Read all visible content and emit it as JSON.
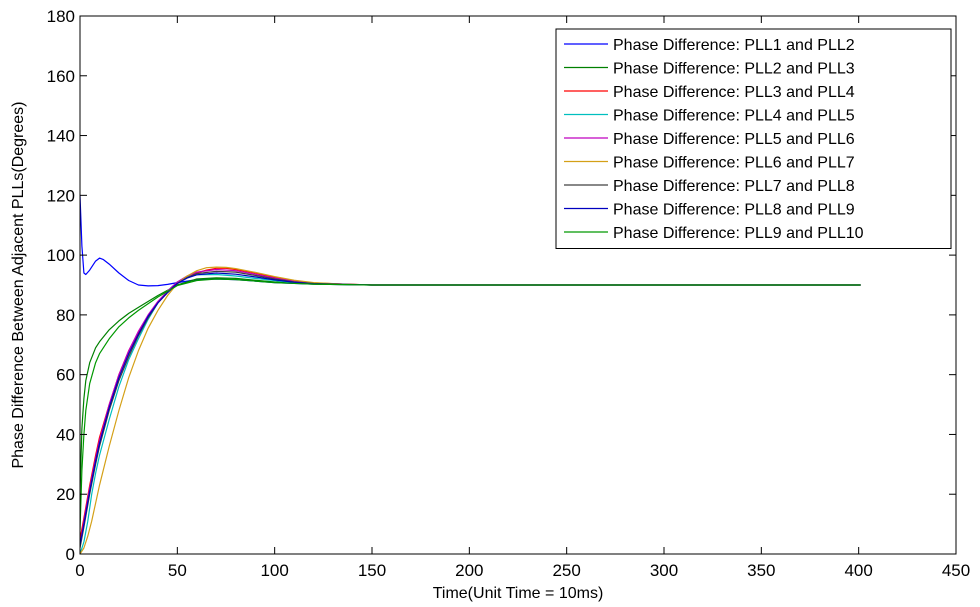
{
  "chart_data": {
    "type": "line",
    "title": "",
    "xlabel": "Time(Unit Time = 10ms)",
    "ylabel": "Phase Difference Between Adjacent PLLs(Degrees)",
    "xlim": [
      0,
      450
    ],
    "ylim": [
      0,
      180
    ],
    "xticks": [
      0,
      50,
      100,
      150,
      200,
      250,
      300,
      350,
      400,
      450
    ],
    "yticks": [
      0,
      20,
      40,
      60,
      80,
      100,
      120,
      140,
      160,
      180
    ],
    "grid": false,
    "legend_position": "top-right",
    "series": [
      {
        "name": "Phase Difference: PLL1 and PLL2",
        "color": "#0000ff",
        "x": [
          0,
          1,
          2,
          3,
          5,
          8,
          10,
          12,
          15,
          20,
          25,
          30,
          35,
          40,
          45,
          50,
          55,
          60,
          70,
          80,
          90,
          100,
          120,
          150,
          200,
          300,
          401
        ],
        "y": [
          120,
          103,
          94,
          93.5,
          95,
          98,
          99,
          98.5,
          97,
          94,
          91.5,
          90,
          89.7,
          89.8,
          90.2,
          90.8,
          91.3,
          91.8,
          92,
          91.8,
          91.3,
          90.8,
          90.3,
          90,
          90,
          90,
          90
        ]
      },
      {
        "name": "Phase Difference: PLL2 and PLL3",
        "color": "#008000",
        "x": [
          0,
          1,
          2,
          3,
          5,
          8,
          10,
          15,
          20,
          25,
          30,
          40,
          50,
          60,
          70,
          80,
          90,
          100,
          120,
          150,
          200,
          300,
          401
        ],
        "y": [
          20,
          42,
          52,
          58,
          64,
          69,
          71,
          75,
          78,
          80.5,
          82.5,
          86.5,
          90,
          92,
          92.4,
          92.2,
          91.6,
          91,
          90.3,
          90,
          90,
          90,
          90
        ]
      },
      {
        "name": "Phase Difference: PLL3 and PLL4",
        "color": "#ff0000",
        "x": [
          0,
          2,
          5,
          8,
          10,
          15,
          20,
          25,
          30,
          35,
          40,
          45,
          50,
          55,
          60,
          65,
          70,
          75,
          80,
          90,
          100,
          110,
          120,
          135,
          150,
          200,
          300,
          401
        ],
        "y": [
          5,
          12,
          23,
          33,
          39,
          50,
          60,
          68,
          74,
          79.5,
          84,
          87.5,
          90.5,
          92.5,
          94,
          95,
          95.6,
          95.6,
          95.2,
          94,
          92.5,
          91.3,
          90.7,
          90.3,
          90,
          90,
          90,
          90
        ]
      },
      {
        "name": "Phase Difference: PLL4 and PLL5",
        "color": "#00bfbf",
        "x": [
          0,
          2,
          4,
          6,
          8,
          10,
          15,
          20,
          25,
          30,
          35,
          40,
          45,
          50,
          55,
          60,
          70,
          80,
          90,
          100,
          110,
          120,
          150,
          200,
          300,
          401
        ],
        "y": [
          0,
          4,
          11,
          20,
          27,
          33,
          45,
          56,
          65,
          72,
          78.5,
          84,
          88,
          91,
          92.8,
          93.4,
          93.5,
          93,
          92.2,
          91.5,
          90.8,
          90.4,
          90,
          90,
          90,
          90
        ]
      },
      {
        "name": "Phase Difference: PLL5 and PLL6",
        "color": "#bf00bf",
        "x": [
          0,
          2,
          5,
          8,
          10,
          15,
          20,
          25,
          30,
          35,
          40,
          45,
          50,
          55,
          60,
          70,
          80,
          90,
          100,
          110,
          120,
          150,
          200,
          300,
          401
        ],
        "y": [
          3,
          11,
          22,
          32,
          38,
          50,
          60,
          68,
          74.5,
          80,
          84.5,
          88,
          91,
          93,
          94.3,
          95.2,
          94.8,
          93.6,
          92.3,
          91.2,
          90.6,
          90,
          90,
          90,
          90
        ]
      },
      {
        "name": "Phase Difference: PLL6 and PLL7",
        "color": "#d4a017",
        "x": [
          0,
          2,
          4,
          6,
          8,
          10,
          15,
          20,
          25,
          30,
          35,
          40,
          45,
          50,
          55,
          60,
          65,
          70,
          75,
          80,
          90,
          100,
          110,
          120,
          135,
          150,
          200,
          300,
          401
        ],
        "y": [
          0,
          2,
          6,
          11,
          17,
          23,
          36,
          48,
          59,
          68,
          75.5,
          81.5,
          86.5,
          90.5,
          93,
          94.8,
          95.8,
          96,
          95.9,
          95.5,
          94.2,
          92.8,
          91.6,
          90.8,
          90.3,
          90,
          90,
          90,
          90
        ]
      },
      {
        "name": "Phase Difference: PLL7 and PLL8",
        "color": "#404040",
        "x": [
          0,
          2,
          5,
          8,
          10,
          15,
          20,
          25,
          30,
          35,
          40,
          45,
          50,
          55,
          60,
          70,
          80,
          90,
          100,
          110,
          120,
          150,
          200,
          300,
          401
        ],
        "y": [
          2,
          9,
          20,
          30,
          36,
          48,
          58,
          66,
          73,
          79,
          84,
          87.5,
          90.5,
          92.5,
          93.8,
          94.6,
          94.3,
          93.2,
          92,
          91,
          90.5,
          90,
          90,
          90,
          90
        ]
      },
      {
        "name": "Phase Difference: PLL8 and PLL9",
        "color": "#0000bf",
        "x": [
          0,
          2,
          5,
          8,
          10,
          15,
          20,
          25,
          30,
          35,
          40,
          45,
          50,
          55,
          60,
          70,
          80,
          90,
          100,
          110,
          120,
          150,
          200,
          300,
          401
        ],
        "y": [
          3,
          10,
          21,
          31,
          37,
          49,
          59,
          67,
          73.5,
          79.5,
          84,
          87.5,
          90.5,
          92.3,
          93.4,
          94,
          93.6,
          92.7,
          91.7,
          90.9,
          90.4,
          90,
          90,
          90,
          90
        ]
      },
      {
        "name": "Phase Difference: PLL9 and PLL10",
        "color": "#009900",
        "x": [
          0,
          1,
          2,
          3,
          5,
          8,
          10,
          15,
          20,
          25,
          30,
          40,
          50,
          60,
          70,
          80,
          90,
          100,
          120,
          150,
          200,
          300,
          401
        ],
        "y": [
          8,
          28,
          40,
          48,
          57,
          64,
          67,
          72,
          76,
          79,
          81.5,
          86,
          89.8,
          91.5,
          92,
          91.8,
          91.3,
          90.8,
          90.3,
          90,
          90,
          90,
          90
        ]
      }
    ]
  }
}
